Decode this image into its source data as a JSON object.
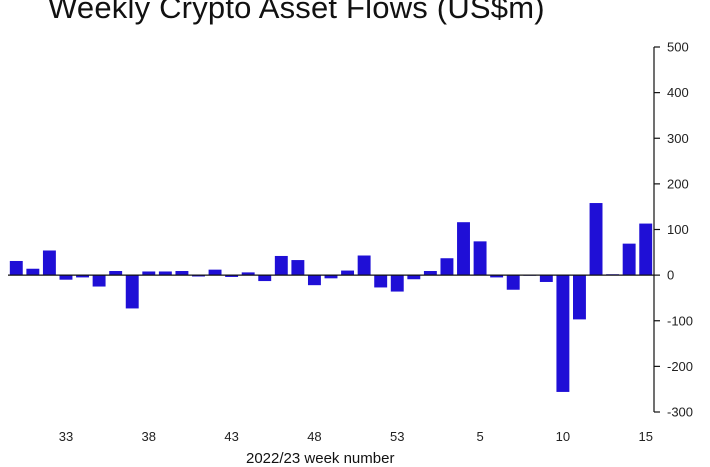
{
  "chart_data": {
    "type": "bar",
    "title": "Weekly Crypto Asset Flows (US$m)",
    "xlabel": "2022/23 week number",
    "ylabel": "",
    "ylim": [
      -300,
      500
    ],
    "yticks": [
      500,
      400,
      300,
      200,
      100,
      0,
      -100,
      -200,
      -300
    ],
    "y_axis_position": "right",
    "grid": false,
    "bar_color": "#1f0fd6",
    "categories": [
      "30",
      "31",
      "32",
      "33",
      "34",
      "35",
      "36",
      "37",
      "38",
      "39",
      "40",
      "41",
      "42",
      "43",
      "44",
      "45",
      "46",
      "47",
      "48",
      "49",
      "50",
      "51",
      "52",
      "53",
      "1",
      "2",
      "3",
      "4",
      "5",
      "6",
      "7",
      "8",
      "9",
      "10",
      "11",
      "12",
      "13",
      "14",
      "15"
    ],
    "xtick_labels": [
      "33",
      "38",
      "43",
      "48",
      "53",
      "5",
      "10",
      "15"
    ],
    "values": [
      31,
      14,
      54,
      -10,
      -5,
      -25,
      9,
      -73,
      8,
      8,
      9,
      -3,
      12,
      -4,
      6,
      -13,
      42,
      33,
      -22,
      -7,
      10,
      43,
      -27,
      -36,
      -9,
      9,
      37,
      116,
      74,
      -5,
      -32,
      -1,
      -15,
      -256,
      -97,
      158,
      2,
      69,
      113
    ]
  }
}
